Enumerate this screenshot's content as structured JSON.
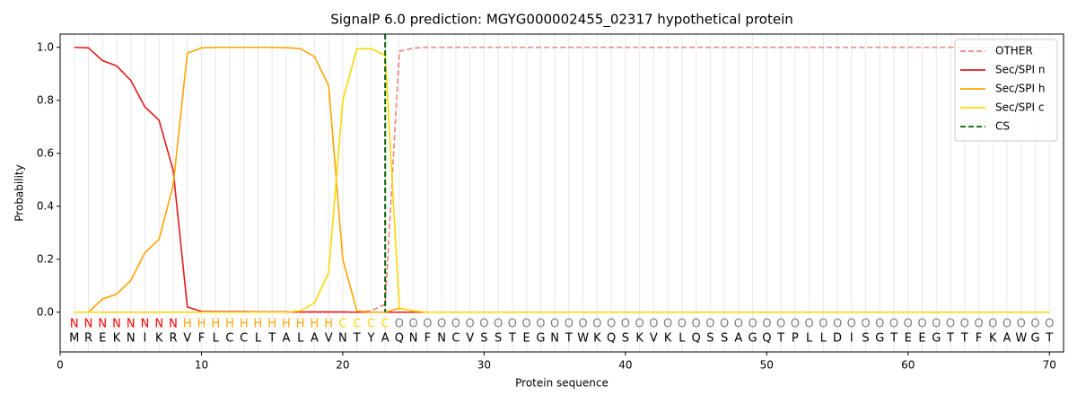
{
  "chart_data": {
    "type": "line",
    "title": "SignalP 6.0 prediction: MGYG000002455_02317 hypothetical protein",
    "x_label": "Protein sequence",
    "y_label": "Probability",
    "xlim": [
      0,
      71
    ],
    "ylim": [
      -0.15,
      1.05
    ],
    "xticks": [
      0,
      10,
      20,
      30,
      40,
      50,
      60,
      70
    ],
    "yticks": [
      {
        "value": 0,
        "label": "0.0"
      },
      {
        "value": 0.2,
        "label": "0.2"
      },
      {
        "value": 0.4,
        "label": "0.4"
      },
      {
        "value": 0.6,
        "label": "0.6"
      },
      {
        "value": 0.8,
        "label": "0.8"
      },
      {
        "value": 1,
        "label": "1.0"
      }
    ],
    "legend_position": "upper right",
    "x": [
      1,
      2,
      3,
      4,
      5,
      6,
      7,
      8,
      9,
      10,
      11,
      12,
      13,
      14,
      15,
      16,
      17,
      18,
      19,
      20,
      21,
      22,
      23,
      24,
      25,
      26,
      27,
      28,
      29,
      30,
      31,
      32,
      33,
      34,
      35,
      36,
      37,
      38,
      39,
      40,
      41,
      42,
      43,
      44,
      45,
      46,
      47,
      48,
      49,
      50,
      51,
      52,
      53,
      54,
      55,
      56,
      57,
      58,
      59,
      60,
      61,
      62,
      63,
      64,
      65,
      66,
      67,
      68,
      69,
      70
    ],
    "residues": [
      "M",
      "R",
      "E",
      "K",
      "N",
      "I",
      "K",
      "R",
      "V",
      "F",
      "L",
      "C",
      "C",
      "L",
      "T",
      "A",
      "L",
      "A",
      "V",
      "N",
      "T",
      "Y",
      "A",
      "Q",
      "N",
      "F",
      "N",
      "C",
      "V",
      "S",
      "S",
      "T",
      "E",
      "G",
      "N",
      "T",
      "W",
      "K",
      "Q",
      "S",
      "K",
      "V",
      "K",
      "L",
      "Q",
      "S",
      "S",
      "A",
      "G",
      "Q",
      "T",
      "P",
      "L",
      "L",
      "D",
      "I",
      "S",
      "G",
      "T",
      "E",
      "E",
      "G",
      "T",
      "T",
      "F",
      "K",
      "A",
      "W",
      "G",
      "T"
    ],
    "region_labels": [
      "N",
      "N",
      "N",
      "N",
      "N",
      "N",
      "N",
      "N",
      "H",
      "H",
      "H",
      "H",
      "H",
      "H",
      "H",
      "H",
      "H",
      "H",
      "H",
      "C",
      "C",
      "C",
      "C",
      "O",
      "O",
      "O",
      "O",
      "O",
      "O",
      "O",
      "O",
      "O",
      "O",
      "O",
      "O",
      "O",
      "O",
      "O",
      "O",
      "O",
      "O",
      "O",
      "O",
      "O",
      "O",
      "O",
      "O",
      "O",
      "O",
      "O",
      "O",
      "O",
      "O",
      "O",
      "O",
      "O",
      "O",
      "O",
      "O",
      "O",
      "O",
      "O",
      "O",
      "O",
      "O",
      "O",
      "O",
      "O",
      "O",
      "O"
    ],
    "region_colors": {
      "N": "#ff0000",
      "H": "#ffa500",
      "C": "#ffd700",
      "O": "#808080"
    },
    "series": [
      {
        "name": "OTHER",
        "color": "#f08080",
        "dash": true,
        "values": [
          0,
          0,
          0,
          0,
          0,
          0,
          0,
          0,
          0,
          0,
          0,
          0,
          0,
          0,
          0,
          0,
          0,
          0,
          0,
          0,
          0,
          0.005,
          0.03,
          0.985,
          0.997,
          1,
          1,
          1,
          1,
          1,
          1,
          1,
          1,
          1,
          1,
          1,
          1,
          1,
          1,
          1,
          1,
          1,
          1,
          1,
          1,
          1,
          1,
          1,
          1,
          1,
          1,
          1,
          1,
          1,
          1,
          1,
          1,
          1,
          1,
          1,
          1,
          1,
          1,
          1,
          1,
          1,
          1,
          1,
          1,
          1
        ]
      },
      {
        "name": "Sec/SPI n",
        "color": "#e41a1c",
        "dash": false,
        "values": [
          1,
          0.998,
          0.95,
          0.93,
          0.875,
          0.775,
          0.725,
          0.535,
          0.02,
          0.003,
          0.002,
          0.002,
          0.002,
          0.001,
          0.001,
          0.001,
          0.001,
          0.001,
          0.001,
          0.001,
          0,
          0,
          0,
          0,
          0,
          0,
          0,
          0,
          0,
          0,
          0,
          0,
          0,
          0,
          0,
          0,
          0,
          0,
          0,
          0,
          0,
          0,
          0,
          0,
          0,
          0,
          0,
          0,
          0,
          0,
          0,
          0,
          0,
          0,
          0,
          0,
          0,
          0,
          0,
          0,
          0,
          0,
          0,
          0,
          0,
          0,
          0,
          0,
          0,
          0
        ]
      },
      {
        "name": "Sec/SPI h",
        "color": "#ffa500",
        "dash": false,
        "values": [
          0,
          0,
          0.05,
          0.068,
          0.12,
          0.225,
          0.275,
          0.48,
          0.978,
          0.998,
          1,
          1,
          1,
          1,
          1,
          0.999,
          0.995,
          0.965,
          0.855,
          0.2,
          0.005,
          0,
          0,
          0.015,
          0.005,
          0,
          0,
          0,
          0,
          0,
          0,
          0,
          0,
          0,
          0,
          0,
          0,
          0,
          0,
          0,
          0,
          0,
          0,
          0,
          0,
          0,
          0,
          0,
          0,
          0,
          0,
          0,
          0,
          0,
          0,
          0,
          0,
          0,
          0,
          0,
          0,
          0,
          0,
          0,
          0,
          0,
          0,
          0,
          0,
          0
        ]
      },
      {
        "name": "Sec/SPI c",
        "color": "#ffd700",
        "dash": false,
        "values": [
          0,
          0,
          0,
          0,
          0,
          0,
          0,
          0,
          0,
          0,
          0,
          0,
          0,
          0,
          0,
          0,
          0.005,
          0.035,
          0.15,
          0.8,
          0.995,
          0.995,
          0.97,
          0.015,
          0.005,
          0,
          0,
          0,
          0,
          0,
          0,
          0,
          0,
          0,
          0,
          0,
          0,
          0,
          0,
          0,
          0,
          0,
          0,
          0,
          0,
          0,
          0,
          0,
          0,
          0,
          0,
          0,
          0,
          0,
          0,
          0,
          0,
          0,
          0,
          0,
          0,
          0,
          0,
          0,
          0,
          0,
          0,
          0,
          0,
          0
        ]
      }
    ],
    "cs": {
      "name": "CS",
      "x": 23,
      "color": "#006400"
    }
  }
}
